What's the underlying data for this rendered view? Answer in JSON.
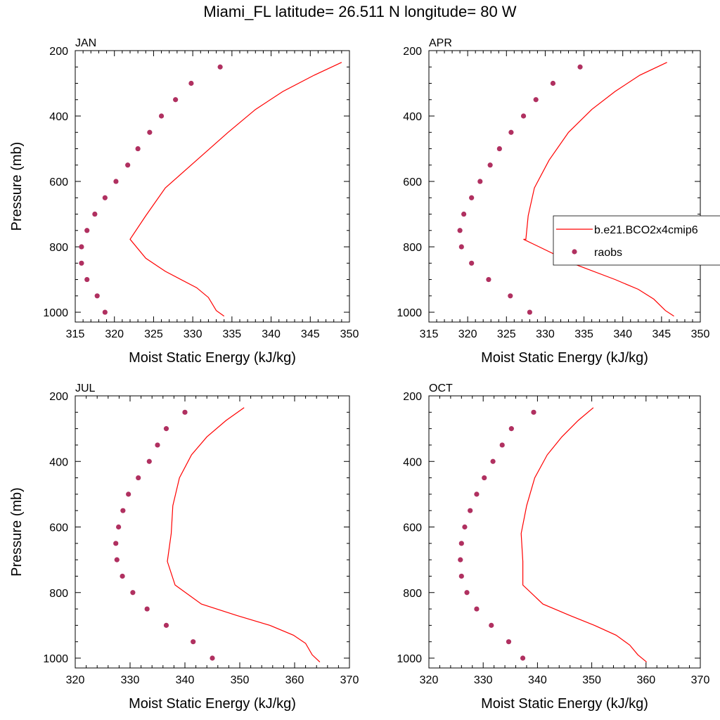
{
  "title": "Miami_FL  latitude= 26.511 N longitude= 80 W",
  "colors": {
    "model": "#ff0000",
    "obs": "#b03060"
  },
  "legend": {
    "model_label": "b.e21.BCO2x4cmip6",
    "obs_label": "raobs"
  },
  "chart_data": [
    {
      "type": "line",
      "panel": "JAN",
      "title": "JAN",
      "xlabel": "Moist Static Energy (kJ/kg)",
      "ylabel": "Pressure (mb)",
      "xlim": [
        315,
        350
      ],
      "ylim": [
        200,
        1030
      ],
      "y_inverted": true,
      "xticks": [
        315,
        320,
        325,
        330,
        335,
        340,
        345,
        350
      ],
      "yticks": [
        200,
        400,
        600,
        800,
        1000
      ],
      "series": [
        {
          "name": "b.e21.BCO2x4cmip6",
          "style": "line",
          "x": [
            349,
            345.5,
            341.5,
            338,
            334.5,
            330.5,
            326.5,
            324,
            322,
            324,
            326.5,
            330.5,
            332,
            333,
            334
          ],
          "y": [
            236,
            275,
            325,
            380,
            450,
            535,
            620,
            705,
            777,
            835,
            875,
            925,
            955,
            995,
            1012
          ]
        },
        {
          "name": "raobs",
          "style": "markers",
          "x": [
            333.5,
            329.8,
            327.8,
            326,
            324.5,
            323,
            321.7,
            320.2,
            318.8,
            317.5,
            316.5,
            315.8,
            315.8,
            316.5,
            317.8,
            318.8
          ],
          "y": [
            250,
            300,
            350,
            400,
            450,
            500,
            550,
            600,
            650,
            700,
            750,
            800,
            850,
            900,
            950,
            1000
          ]
        }
      ]
    },
    {
      "type": "line",
      "panel": "APR",
      "title": "APR",
      "xlabel": "Moist Static Energy (kJ/kg)",
      "ylabel": "",
      "xlim": [
        315,
        350
      ],
      "ylim": [
        200,
        1030
      ],
      "y_inverted": true,
      "xticks": [
        315,
        320,
        325,
        330,
        335,
        340,
        345,
        350
      ],
      "yticks": [
        200,
        400,
        600,
        800,
        1000
      ],
      "series": [
        {
          "name": "b.e21.BCO2x4cmip6",
          "style": "line",
          "x": [
            345.7,
            342.2,
            339,
            336,
            333,
            330.5,
            328.6,
            327.8,
            327.5,
            327.2,
            334,
            339,
            342,
            344,
            345.5,
            346.6
          ],
          "y": [
            236,
            275,
            325,
            380,
            450,
            535,
            620,
            705,
            777,
            777,
            855,
            900,
            930,
            960,
            995,
            1012
          ]
        },
        {
          "name": "raobs",
          "style": "markers",
          "x": [
            334.5,
            331,
            328.8,
            327.2,
            325.6,
            324.1,
            322.9,
            321.6,
            320.5,
            319.5,
            319,
            319.2,
            320.5,
            322.7,
            325.5,
            328
          ],
          "y": [
            250,
            300,
            350,
            400,
            450,
            500,
            550,
            600,
            650,
            700,
            750,
            800,
            850,
            900,
            950,
            1000
          ]
        }
      ]
    },
    {
      "type": "line",
      "panel": "JUL",
      "title": "JUL",
      "xlabel": "Moist Static Energy (kJ/kg)",
      "ylabel": "Pressure (mb)",
      "xlim": [
        320,
        370
      ],
      "ylim": [
        200,
        1030
      ],
      "y_inverted": true,
      "xticks": [
        320,
        330,
        340,
        350,
        360,
        370
      ],
      "yticks": [
        200,
        400,
        600,
        800,
        1000
      ],
      "series": [
        {
          "name": "b.e21.BCO2x4cmip6",
          "style": "line",
          "x": [
            350.8,
            347.5,
            344,
            341.2,
            339,
            337.8,
            337.5,
            336.8,
            338.2,
            343,
            349.5,
            355.5,
            359.8,
            362,
            363.2,
            364.6
          ],
          "y": [
            236,
            275,
            325,
            380,
            450,
            535,
            620,
            705,
            777,
            835,
            870,
            900,
            930,
            955,
            990,
            1012
          ]
        },
        {
          "name": "raobs",
          "style": "markers",
          "x": [
            340,
            336.6,
            335,
            333.5,
            331.5,
            329.7,
            328.7,
            327.9,
            327.4,
            327.6,
            328.6,
            330.5,
            333.1,
            336.6,
            341.5,
            345
          ],
          "y": [
            250,
            300,
            350,
            400,
            450,
            500,
            550,
            600,
            650,
            700,
            750,
            800,
            850,
            900,
            950,
            1000
          ]
        }
      ]
    },
    {
      "type": "line",
      "panel": "OCT",
      "title": "OCT",
      "xlabel": "Moist Static Energy (kJ/kg)",
      "ylabel": "",
      "xlim": [
        320,
        370
      ],
      "ylim": [
        200,
        1030
      ],
      "y_inverted": true,
      "xticks": [
        320,
        330,
        340,
        350,
        360,
        370
      ],
      "yticks": [
        200,
        400,
        600,
        800,
        1000
      ],
      "series": [
        {
          "name": "b.e21.BCO2x4cmip6",
          "style": "line",
          "x": [
            350.3,
            347.5,
            344.5,
            341.8,
            339.5,
            338,
            337,
            337.3,
            337.3,
            337.3,
            341,
            346,
            350.5,
            354.5,
            357,
            358.5,
            360.1
          ],
          "y": [
            236,
            275,
            325,
            380,
            450,
            535,
            620,
            705,
            740,
            777,
            835,
            870,
            900,
            930,
            960,
            990,
            1012
          ]
        },
        {
          "name": "raobs",
          "style": "markers",
          "x": [
            339.3,
            335.2,
            333.5,
            331.8,
            330.2,
            328.8,
            327.6,
            326.6,
            326,
            325.8,
            326,
            327,
            328.8,
            331.5,
            334.7,
            337.3
          ],
          "y": [
            250,
            300,
            350,
            400,
            450,
            500,
            550,
            600,
            650,
            700,
            750,
            800,
            850,
            900,
            950,
            1000
          ]
        }
      ]
    }
  ]
}
